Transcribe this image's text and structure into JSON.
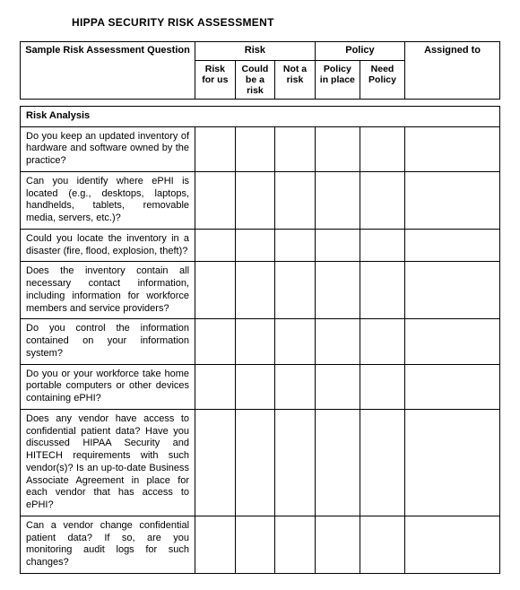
{
  "title": "HIPPA SECURITY RISK ASSESSMENT",
  "header": {
    "question": "Sample Risk Assessment Question",
    "risk": "Risk",
    "policy": "Policy",
    "assigned": "Assigned to",
    "sub": {
      "risk_for_us": "Risk for us",
      "could_be": "Could be a risk",
      "not_a": "Not a risk",
      "policy_in_place": "Policy in place",
      "need_policy": "Need Policy"
    }
  },
  "section": "Risk Analysis",
  "questions": [
    "Do you keep an updated inventory of hardware and software owned by the practice?",
    "Can you identify where ePHI is located (e.g., desktops, laptops, handhelds, tablets, removable media, servers, etc.)?",
    "Could you locate the inventory in a disaster (fire, flood, explosion, theft)?",
    "Does the inventory contain all necessary contact information, including information for workforce members and service providers?",
    "Do you control the information contained on your information system?",
    "Do you or your workforce take home portable computers or other devices containing ePHI?",
    "Does any vendor have access to confidential patient data? Have you discussed HIPAA Security and HITECH requirements with such vendor(s)? Is an up-to-date Business Associate Agreement in place for each vendor that has access to ePHI?",
    "Can a vendor change confidential patient data? If so, are you monitoring audit logs for such changes?"
  ]
}
